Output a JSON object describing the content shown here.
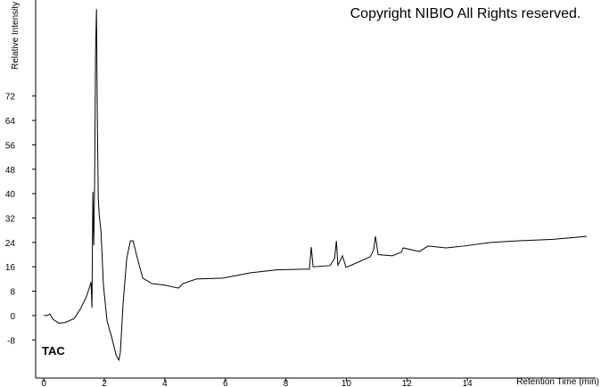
{
  "chart_data": {
    "type": "line",
    "copyright": "Copyright NIBIO All Rights reserved.",
    "trace_label": "TAC",
    "x_label": "Retention Time (min)",
    "y_label": "Relative Intensity",
    "color": "#000000",
    "x": [
      0,
      0.1,
      0.2,
      0.3,
      0.5,
      0.7,
      1.0,
      1.2,
      1.4,
      1.5,
      1.56,
      1.59,
      1.62,
      1.65,
      1.68,
      1.71,
      1.74,
      1.77,
      1.8,
      1.83,
      1.89,
      1.97,
      2.09,
      2.24,
      2.39,
      2.48,
      2.53,
      2.62,
      2.74,
      2.86,
      2.95,
      3.06,
      3.27,
      3.57,
      4.0,
      4.45,
      4.6,
      5.04,
      5.92,
      6.81,
      7.7,
      8.58,
      8.78,
      8.84,
      8.9,
      9.46,
      9.61,
      9.67,
      9.72,
      9.87,
      9.99,
      10.34,
      10.79,
      10.9,
      10.96,
      11.05,
      11.52,
      11.82,
      11.88,
      12.41,
      12.7,
      13.29,
      13.88,
      14.77,
      15.65,
      16.83,
      17.95
    ],
    "values": [
      0,
      0,
      0.5,
      -1.2,
      -2.5,
      -2.3,
      -1,
      2,
      6,
      9,
      11,
      2.6,
      40.6,
      23,
      45,
      86,
      100.5,
      62.5,
      38.6,
      33,
      27.5,
      10,
      -1.8,
      -7,
      -13,
      -14.6,
      -12,
      4,
      18.7,
      24.5,
      24.5,
      20,
      12.3,
      10.5,
      10,
      9,
      10.5,
      12,
      12.3,
      14,
      15,
      15.2,
      15.2,
      22.5,
      16,
      16.4,
      18.7,
      24.5,
      16.5,
      19.6,
      15.8,
      17.3,
      19.3,
      21.5,
      26,
      20,
      19.6,
      20.8,
      22.2,
      21,
      22.8,
      22.2,
      22.8,
      24,
      24.5,
      25,
      26
    ],
    "xlim": [
      -0.27,
      18.24
    ],
    "ylim": [
      -20.5,
      103.5
    ],
    "xticks": [
      0,
      2,
      4,
      6,
      8,
      10,
      12,
      14
    ],
    "yticks": [
      -8,
      0,
      8,
      16,
      24,
      32,
      40,
      48,
      56,
      64,
      72
    ]
  }
}
